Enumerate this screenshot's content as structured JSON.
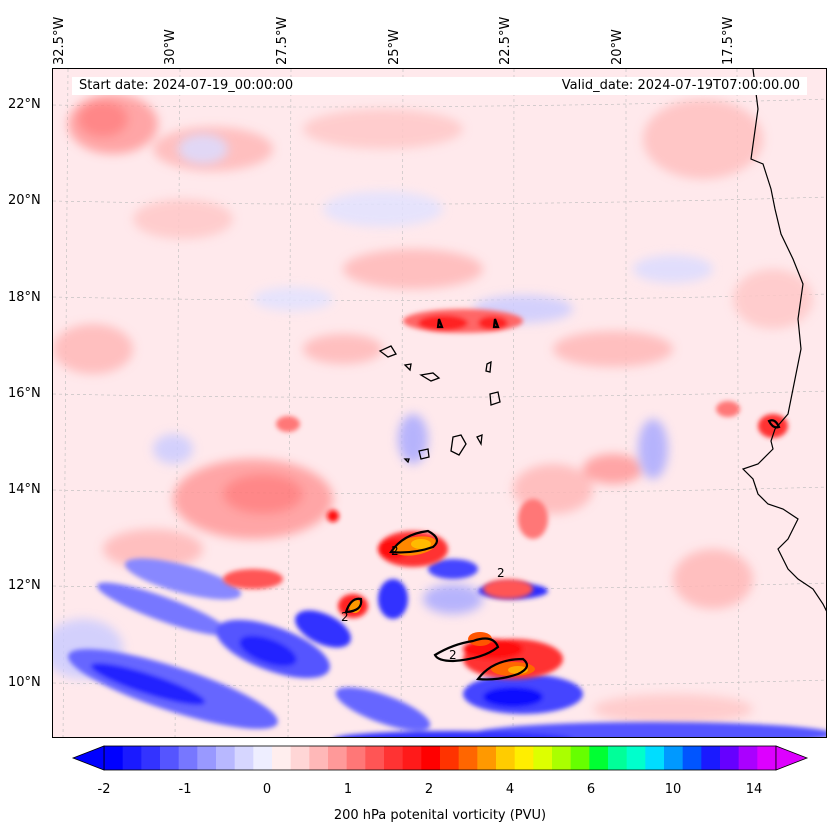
{
  "map": {
    "title_left": "Start date: 2024-07-19_00:00:00",
    "title_right": "Valid_date: 2024-07-19T07:00:00.00",
    "lon_labels": [
      "32.5°W",
      "30°W",
      "27.5°W",
      "25°W",
      "22.5°W",
      "20°W",
      "17.5°W"
    ],
    "lat_labels": [
      "22°N",
      "20°N",
      "18°N",
      "16°N",
      "14°N",
      "12°N",
      "10°N"
    ],
    "contour_label": "2",
    "colors": {
      "background_fill": "#ffe9ec",
      "land_outline": "#000000"
    }
  },
  "colorbar": {
    "label": "200 hPa potenital vorticity (PVU)",
    "ticks": [
      "-2",
      "-1",
      "0",
      "1",
      "2",
      "4",
      "6",
      "10",
      "14"
    ],
    "colors": [
      "#0000ff",
      "#1a1aff",
      "#3333ff",
      "#5555ff",
      "#7777ff",
      "#9999ff",
      "#b8b8ff",
      "#d6d6ff",
      "#eeeeff",
      "#ffeeee",
      "#ffd6d6",
      "#ffb8b8",
      "#ff9999",
      "#ff7777",
      "#ff5555",
      "#ff3333",
      "#ff1a1a",
      "#ff0000",
      "#ff3300",
      "#ff6600",
      "#ff9900",
      "#ffcc00",
      "#ffee00",
      "#ddff00",
      "#aaff00",
      "#66ff00",
      "#00ff33",
      "#00ff99",
      "#00ffcc",
      "#00ddff",
      "#0099ff",
      "#0055ff",
      "#1a1aff",
      "#6600ff",
      "#aa00ff",
      "#dd00ff"
    ]
  }
}
